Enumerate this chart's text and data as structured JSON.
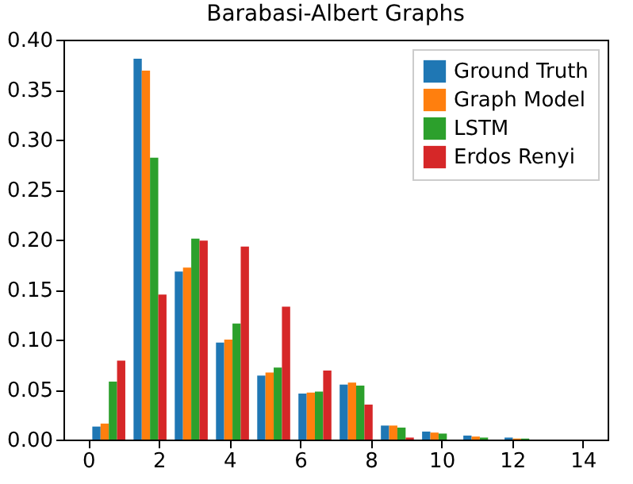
{
  "chart_data": {
    "type": "histogram",
    "title": "Barabasi-Albert Graphs",
    "bins": [
      0,
      1.167,
      2.333,
      3.5,
      4.667,
      5.833,
      7,
      8.167,
      9.333,
      10.5,
      11.667,
      12.833,
      14
    ],
    "series": [
      {
        "name": "Ground Truth",
        "color": "#1f77b4",
        "values": [
          0.013,
          0.381,
          0.168,
          0.097,
          0.064,
          0.046,
          0.055,
          0.014,
          0.008,
          0.004,
          0.002,
          0
        ]
      },
      {
        "name": "Graph Model",
        "color": "#ff7f0e",
        "values": [
          0.016,
          0.369,
          0.172,
          0.1,
          0.067,
          0.047,
          0.057,
          0.014,
          0.007,
          0.003,
          0.001,
          0
        ]
      },
      {
        "name": "LSTM",
        "color": "#2ca02c",
        "values": [
          0.058,
          0.282,
          0.201,
          0.116,
          0.072,
          0.048,
          0.054,
          0.012,
          0.006,
          0.002,
          0.001,
          0
        ]
      },
      {
        "name": "Erdos Renyi",
        "color": "#d62728",
        "values": [
          0.079,
          0.145,
          0.199,
          0.193,
          0.133,
          0.069,
          0.035,
          0.002,
          0,
          0,
          0,
          0
        ]
      }
    ],
    "xlim": [
      -0.7,
      14.7
    ],
    "xticks": [
      0,
      2,
      4,
      6,
      8,
      10,
      12,
      14
    ],
    "ylim": [
      0,
      0.4
    ],
    "yticks": [
      {
        "value": 0,
        "label": "0.00"
      },
      {
        "value": 0.05,
        "label": "0.05"
      },
      {
        "value": 0.1,
        "label": "0.10"
      },
      {
        "value": 0.15,
        "label": "0.15"
      },
      {
        "value": 0.2,
        "label": "0.20"
      },
      {
        "value": 0.25,
        "label": "0.25"
      },
      {
        "value": 0.3,
        "label": "0.30"
      },
      {
        "value": 0.35,
        "label": "0.35"
      },
      {
        "value": 0.4,
        "label": "0.40"
      }
    ],
    "grid": false,
    "legend": "top right"
  }
}
